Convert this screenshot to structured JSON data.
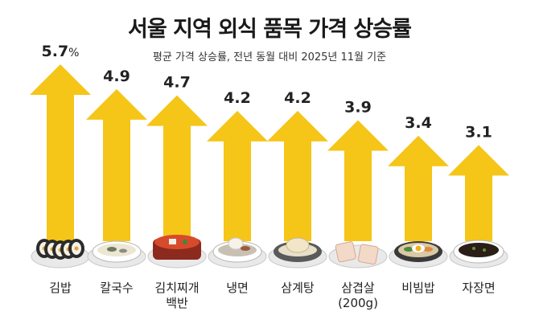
{
  "chart_data": {
    "type": "bar",
    "title": "서울 지역 외식 품목 가격 상승률",
    "subtitle": "평균 가격 상승률, 전년 동월 대비 2025년 11월 기준",
    "unit": "%",
    "categories": [
      "김밥",
      "칼국수",
      "김치찌개 백반",
      "냉면",
      "삼계탕",
      "삼겹살 (200g)",
      "비빔밥",
      "자장면"
    ],
    "category_lines": [
      [
        "김밥"
      ],
      [
        "칼국수"
      ],
      [
        "김치찌개",
        "백반"
      ],
      [
        "냉면"
      ],
      [
        "삼계탕"
      ],
      [
        "삼겹살",
        "(200g)"
      ],
      [
        "비빔밥"
      ],
      [
        "자장면"
      ]
    ],
    "values": [
      5.7,
      4.9,
      4.7,
      4.2,
      4.2,
      3.9,
      3.4,
      3.1
    ],
    "value_labels": [
      "5.7",
      "4.9",
      "4.7",
      "4.2",
      "4.2",
      "3.9",
      "3.4",
      "3.1"
    ],
    "first_value_suffix": "%",
    "food_icons": [
      "gimbap-icon",
      "kalguksu-icon",
      "kimchi-jjigae-icon",
      "naengmyeon-icon",
      "samgyetang-icon",
      "samgyeopsal-icon",
      "bibimbap-icon",
      "jajangmyeon-icon"
    ],
    "colors": {
      "arrow": "#F5C518",
      "text": "#222222"
    }
  }
}
